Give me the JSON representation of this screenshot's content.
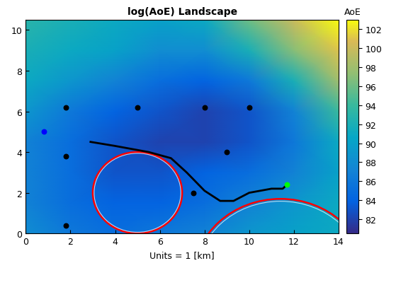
{
  "chart_data": {
    "type": "heatmap",
    "title": "log(AoE) Landscape",
    "xlabel": "Units = 1 [km]",
    "xlim": [
      0,
      14
    ],
    "ylim": [
      0,
      10.5
    ],
    "xticks": [
      0,
      2,
      4,
      6,
      8,
      10,
      12,
      14
    ],
    "yticks": [
      0,
      2,
      4,
      6,
      8,
      10
    ],
    "heatmap": {
      "x": [
        0,
        2,
        4,
        6,
        8,
        10,
        12,
        14
      ],
      "y": [
        0,
        1.5,
        3,
        4.5,
        6,
        7.5,
        9,
        10.5
      ],
      "cells": [
        [
          88,
          86,
          85,
          86,
          87,
          89,
          90,
          91
        ],
        [
          87,
          85,
          84,
          84,
          85,
          87,
          89,
          91
        ],
        [
          87,
          85,
          83,
          83,
          84,
          85,
          87,
          90
        ],
        [
          87,
          85,
          83,
          82,
          82,
          83,
          86,
          91
        ],
        [
          89,
          86,
          84,
          83,
          82,
          83,
          87,
          94
        ],
        [
          91,
          89,
          87,
          85,
          84,
          86,
          92,
          98
        ],
        [
          92,
          91,
          90,
          88,
          88,
          92,
          97,
          101
        ],
        [
          93,
          92,
          91,
          90,
          91,
          96,
          100,
          103
        ]
      ]
    },
    "colorbar": {
      "label": "AoE",
      "lim": [
        80.5,
        103
      ],
      "ticks": [
        82,
        84,
        86,
        88,
        90,
        92,
        94,
        96,
        98,
        100,
        102
      ]
    },
    "circles": [
      {
        "center": [
          5,
          2
        ],
        "radius": 2,
        "color": "#ff0000"
      },
      {
        "center": [
          11.4,
          -2.2
        ],
        "radius": 3.9,
        "color": "#ff0000"
      }
    ],
    "path": {
      "x": [
        2.9,
        4,
        5.5,
        6.5,
        7.2,
        8,
        8.7,
        9.3,
        10,
        11,
        11.5,
        11.7
      ],
      "y": [
        4.5,
        4.3,
        4.0,
        3.7,
        3.0,
        2.1,
        1.6,
        1.6,
        2.0,
        2.2,
        2.2,
        2.4
      ],
      "color": "#000000"
    },
    "markers": [
      {
        "x": [
          1.8,
          5,
          8,
          10,
          1.8,
          9,
          7.5,
          1.8
        ],
        "y": [
          6.2,
          6.2,
          6.2,
          6.2,
          3.8,
          4,
          2,
          0.4
        ],
        "color": "#000000"
      },
      {
        "x": [
          0.8
        ],
        "y": [
          5
        ],
        "color": "#0000ff"
      },
      {
        "x": [
          11.7
        ],
        "y": [
          2.4
        ],
        "color": "#00ff00"
      }
    ]
  }
}
